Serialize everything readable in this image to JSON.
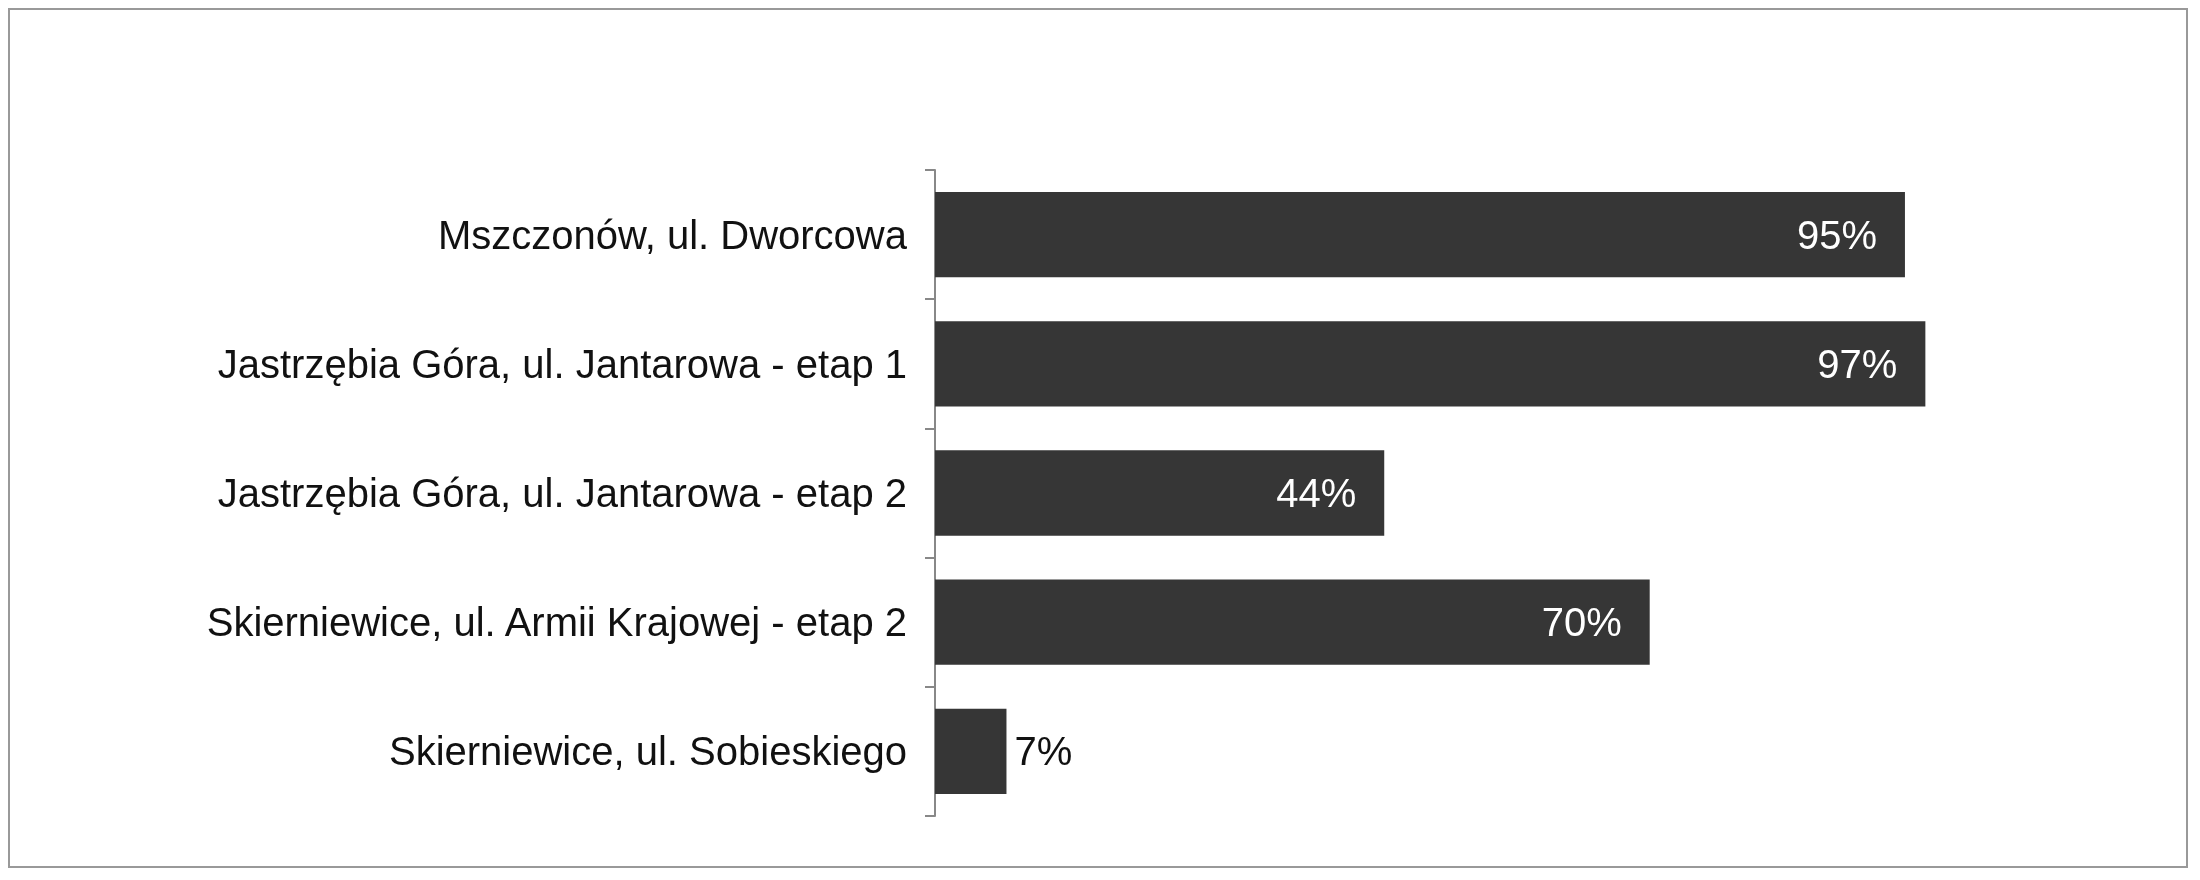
{
  "chart_data": {
    "type": "bar",
    "orientation": "horizontal",
    "categories": [
      "Mszczonów, ul. Dworcowa",
      "Jastrzębia Góra, ul. Jantarowa - etap 1",
      "Jastrzębia Góra, ul. Jantarowa - etap 2",
      "Skierniewice, ul. Armii Krajowej - etap 2",
      "Skierniewice, ul. Sobieskiego"
    ],
    "values": [
      95,
      97,
      44,
      70,
      7
    ],
    "value_labels": [
      "95%",
      "97%",
      "44%",
      "70%",
      "7%"
    ],
    "color": "#363636"
  }
}
